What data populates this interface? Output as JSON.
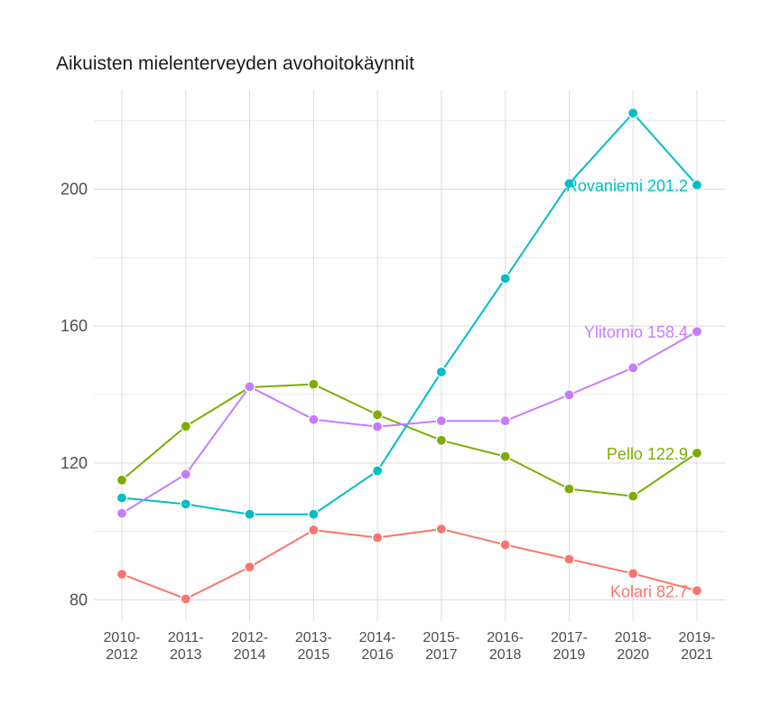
{
  "chart_data": {
    "type": "line",
    "title": "Aikuisten mielenterveyden avohoitokäynnit",
    "xlabel": "",
    "ylabel": "",
    "categories": [
      [
        "2010-",
        "2012"
      ],
      [
        "2011-",
        "2013"
      ],
      [
        "2012-",
        "2014"
      ],
      [
        "2013-",
        "2015"
      ],
      [
        "2014-",
        "2016"
      ],
      [
        "2015-",
        "2017"
      ],
      [
        "2016-",
        "2018"
      ],
      [
        "2017-",
        "2019"
      ],
      [
        "2018-",
        "2020"
      ],
      [
        "2019-",
        "2021"
      ]
    ],
    "ylim": [
      80,
      221
    ],
    "yticks": [
      "80",
      "120",
      "160",
      "200"
    ],
    "grid": true,
    "legend": "none",
    "series": [
      {
        "name": "Kolari",
        "label": "Kolari 82.7",
        "color": "#F8766D",
        "values": [
          87.5,
          80.3,
          89.6,
          100.4,
          98.2,
          100.7,
          96.1,
          91.9,
          87.7,
          82.7
        ]
      },
      {
        "name": "Pello",
        "label": "Pello 122.9",
        "color": "#7CAE00",
        "values": [
          115.0,
          130.7,
          142.1,
          143.0,
          134.1,
          126.6,
          121.9,
          112.4,
          110.3,
          122.9
        ]
      },
      {
        "name": "Rovaniemi",
        "label": "Rovaniemi 201.2",
        "color": "#00BFC4",
        "values": [
          109.8,
          108.0,
          105.0,
          105.0,
          117.7,
          146.6,
          173.9,
          201.6,
          222.2,
          201.2
        ]
      },
      {
        "name": "Ylitornio",
        "label": "Ylitornio 158.4",
        "color": "#C77CFF",
        "values": [
          105.3,
          116.7,
          142.3,
          132.7,
          130.6,
          132.3,
          132.3,
          139.9,
          147.8,
          158.4
        ]
      }
    ]
  }
}
